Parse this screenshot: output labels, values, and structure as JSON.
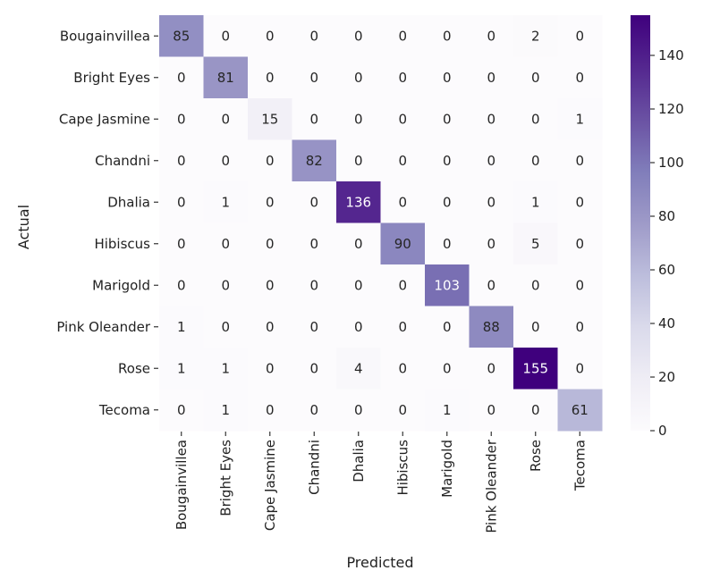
{
  "chart_data": {
    "type": "heatmap",
    "xlabel": "Predicted",
    "ylabel": "Actual",
    "x_categories": [
      "Bougainvillea",
      "Bright Eyes",
      "Cape Jasmine",
      "Chandni",
      "Dhalia",
      "Hibiscus",
      "Marigold",
      "Pink Oleander",
      "Rose",
      "Tecoma"
    ],
    "y_categories": [
      "Bougainvillea",
      "Bright Eyes",
      "Cape Jasmine",
      "Chandni",
      "Dhalia",
      "Hibiscus",
      "Marigold",
      "Pink Oleander",
      "Rose",
      "Tecoma"
    ],
    "values": [
      [
        85,
        0,
        0,
        0,
        0,
        0,
        0,
        0,
        2,
        0
      ],
      [
        0,
        81,
        0,
        0,
        0,
        0,
        0,
        0,
        0,
        0
      ],
      [
        0,
        0,
        15,
        0,
        0,
        0,
        0,
        0,
        0,
        1
      ],
      [
        0,
        0,
        0,
        82,
        0,
        0,
        0,
        0,
        0,
        0
      ],
      [
        0,
        1,
        0,
        0,
        136,
        0,
        0,
        0,
        1,
        0
      ],
      [
        0,
        0,
        0,
        0,
        0,
        90,
        0,
        0,
        5,
        0
      ],
      [
        0,
        0,
        0,
        0,
        0,
        0,
        103,
        0,
        0,
        0
      ],
      [
        1,
        0,
        0,
        0,
        0,
        0,
        0,
        88,
        0,
        0
      ],
      [
        1,
        1,
        0,
        0,
        4,
        0,
        0,
        0,
        155,
        0
      ],
      [
        0,
        1,
        0,
        0,
        0,
        0,
        1,
        0,
        0,
        61
      ]
    ],
    "colorbar": {
      "range": [
        0,
        155
      ],
      "ticks": [
        0,
        20,
        40,
        60,
        80,
        100,
        120,
        140
      ],
      "colormap": "Purples",
      "low_color": "#fcfbfd",
      "high_color": "#3f007d"
    }
  }
}
